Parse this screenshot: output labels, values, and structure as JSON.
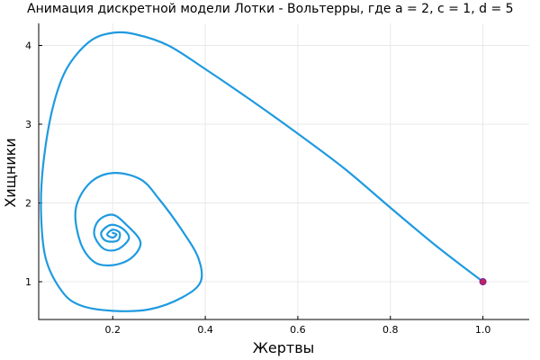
{
  "chart_data": {
    "type": "line",
    "title": "Анимация дискретной модели Лотки - Вольтерры, где a = 2, c = 1, d = 5",
    "xlabel": "Жертвы",
    "ylabel": "Хищники",
    "xlim": [
      0.04,
      1.1
    ],
    "ylim": [
      0.52,
      4.28
    ],
    "xticks": [
      0.2,
      0.4,
      0.6,
      0.8,
      1.0
    ],
    "xtick_labels": [
      "0.2",
      "0.4",
      "0.6",
      "0.8",
      "1.0"
    ],
    "yticks": [
      1,
      2,
      3,
      4
    ],
    "ytick_labels": [
      "1",
      "2",
      "3",
      "4"
    ],
    "grid": true,
    "legend": "none",
    "colors": {
      "line": "#1f9ae0",
      "marker": "#7a1fa2",
      "marker_fill": "#c0245a"
    },
    "series": [
      {
        "points": [
          [
            1.0,
            1.0
          ],
          [
            0.9,
            1.45
          ],
          [
            0.8,
            1.94
          ],
          [
            0.7,
            2.44
          ],
          [
            0.6,
            2.88
          ],
          [
            0.5,
            3.3
          ],
          [
            0.4,
            3.7
          ],
          [
            0.32,
            4.0
          ],
          [
            0.25,
            4.14
          ],
          [
            0.2,
            4.16
          ],
          [
            0.15,
            4.05
          ],
          [
            0.1,
            3.7
          ],
          [
            0.07,
            3.2
          ],
          [
            0.05,
            2.5
          ],
          [
            0.045,
            1.9
          ],
          [
            0.055,
            1.3
          ],
          [
            0.09,
            0.88
          ],
          [
            0.13,
            0.7
          ],
          [
            0.2,
            0.63
          ],
          [
            0.28,
            0.65
          ],
          [
            0.35,
            0.8
          ],
          [
            0.39,
            1.0
          ],
          [
            0.385,
            1.3
          ],
          [
            0.35,
            1.65
          ],
          [
            0.3,
            2.05
          ],
          [
            0.26,
            2.3
          ],
          [
            0.2,
            2.38
          ],
          [
            0.15,
            2.25
          ],
          [
            0.12,
            1.92
          ],
          [
            0.13,
            1.5
          ],
          [
            0.16,
            1.25
          ],
          [
            0.2,
            1.21
          ],
          [
            0.24,
            1.3
          ],
          [
            0.26,
            1.5
          ],
          [
            0.23,
            1.72
          ],
          [
            0.2,
            1.85
          ],
          [
            0.17,
            1.78
          ],
          [
            0.16,
            1.6
          ],
          [
            0.18,
            1.42
          ],
          [
            0.21,
            1.41
          ],
          [
            0.235,
            1.55
          ],
          [
            0.22,
            1.68
          ],
          [
            0.195,
            1.72
          ],
          [
            0.175,
            1.62
          ],
          [
            0.185,
            1.52
          ],
          [
            0.21,
            1.52
          ],
          [
            0.215,
            1.62
          ],
          [
            0.2,
            1.66
          ],
          [
            0.188,
            1.6
          ],
          [
            0.2,
            1.56
          ],
          [
            0.208,
            1.6
          ],
          [
            0.2,
            1.62
          ]
        ]
      }
    ],
    "marker_point": [
      1.0,
      1.0
    ]
  }
}
